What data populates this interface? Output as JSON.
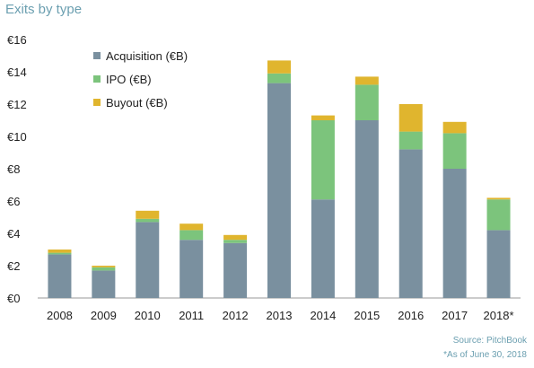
{
  "title": "Exits by type",
  "chart_data": {
    "type": "bar",
    "stacked": true,
    "categories": [
      "2008",
      "2009",
      "2010",
      "2011",
      "2012",
      "2013",
      "2014",
      "2015",
      "2016",
      "2017",
      "2018*"
    ],
    "series": [
      {
        "name": "Acquisition (€B)",
        "color": "#7a909f",
        "values": [
          2.7,
          1.7,
          4.7,
          3.6,
          3.4,
          13.3,
          6.1,
          11.0,
          9.2,
          8.0,
          4.2
        ]
      },
      {
        "name": "IPO (€B)",
        "color": "#7cc47c",
        "values": [
          0.1,
          0.2,
          0.2,
          0.6,
          0.2,
          0.6,
          4.9,
          2.2,
          1.1,
          2.2,
          1.9
        ]
      },
      {
        "name": "Buyout (€B)",
        "color": "#e0b52e",
        "values": [
          0.2,
          0.1,
          0.5,
          0.4,
          0.3,
          0.8,
          0.3,
          0.5,
          1.7,
          0.7,
          0.1
        ]
      }
    ],
    "ylim": [
      0,
      16
    ],
    "yticks": [
      0,
      2,
      4,
      6,
      8,
      10,
      12,
      14,
      16
    ],
    "ytick_prefix": "€",
    "grid": false,
    "legend_position": "top-left"
  },
  "footnotes": {
    "source": "Source: PitchBook",
    "as_of": "*As of June 30, 2018"
  }
}
